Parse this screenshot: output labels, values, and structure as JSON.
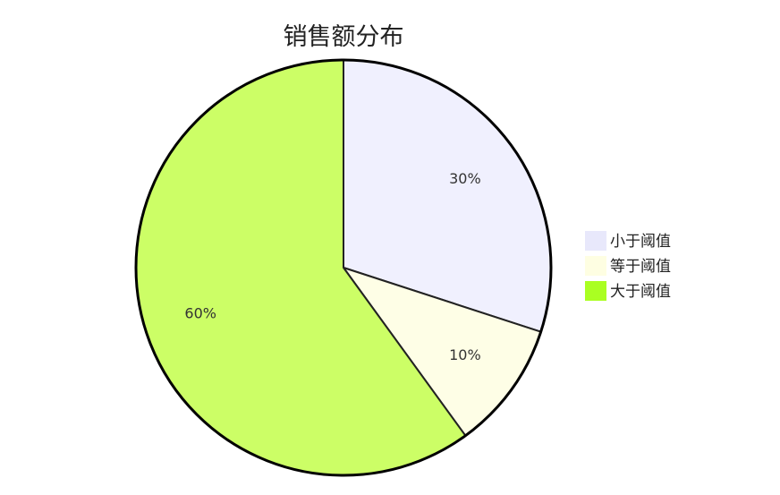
{
  "chart_data": {
    "type": "pie",
    "title": "销售额分布",
    "categories": [
      "小于阈值",
      "等于阈值",
      "大于阈值"
    ],
    "values": [
      30,
      10,
      60
    ],
    "labels": [
      "30%",
      "10%",
      "60%"
    ],
    "colors": [
      "#f0f0fe",
      "#fefee6",
      "#ccfe66"
    ],
    "legend_colors": [
      "#e8e8fb",
      "#fefee2",
      "#aaff22"
    ],
    "outline_color": "#000000",
    "legend": {
      "position": "right",
      "items": [
        "小于阈值",
        "等于阈值",
        "大于阈值"
      ]
    },
    "start_angle": "top",
    "direction": "clockwise"
  }
}
